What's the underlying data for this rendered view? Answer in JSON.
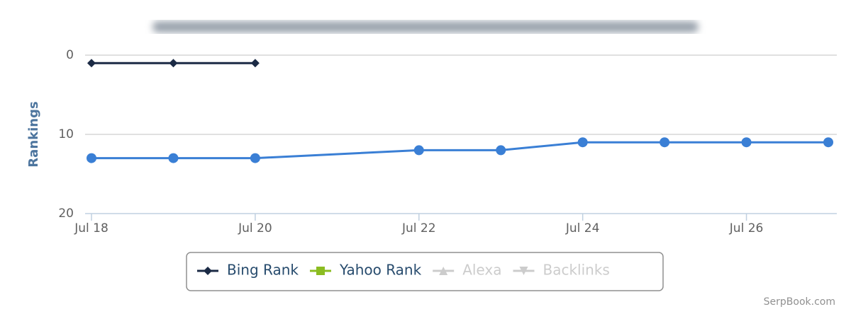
{
  "chart_data": {
    "type": "line",
    "y_label": "Rankings",
    "ylim": [
      0,
      20
    ],
    "yticks": [
      0,
      10,
      20
    ],
    "y_reversed": true,
    "grid": true,
    "xlim": [
      18,
      27
    ],
    "xticks": [
      {
        "value": 18,
        "label": "Jul 18"
      },
      {
        "value": 20,
        "label": "Jul 20"
      },
      {
        "value": 22,
        "label": "Jul 22"
      },
      {
        "value": 24,
        "label": "Jul 24"
      },
      {
        "value": 26,
        "label": "Jul 26"
      }
    ],
    "series": [
      {
        "color": "#3a7fd5",
        "marker": "circle",
        "x": [
          18,
          19,
          20,
          22,
          23,
          24,
          25,
          26,
          27
        ],
        "values": [
          13,
          13,
          13,
          12,
          12,
          11,
          11,
          11,
          11
        ]
      },
      {
        "name": "Bing Rank",
        "color": "#1b2a45",
        "marker": "diamond",
        "x": [
          18,
          19,
          20
        ],
        "values": [
          1,
          1,
          1
        ]
      },
      {
        "name": "Yahoo Rank",
        "color": "#8bbc21",
        "marker": "square",
        "x": [],
        "values": []
      },
      {
        "name": "Alexa",
        "color": "#cccccc",
        "marker": "triangle",
        "visible": false,
        "x": [],
        "values": []
      },
      {
        "name": "Backlinks",
        "color": "#cccccc",
        "marker": "triangle-down",
        "visible": false,
        "x": [],
        "values": []
      }
    ],
    "credits": "SerpBook.com"
  }
}
